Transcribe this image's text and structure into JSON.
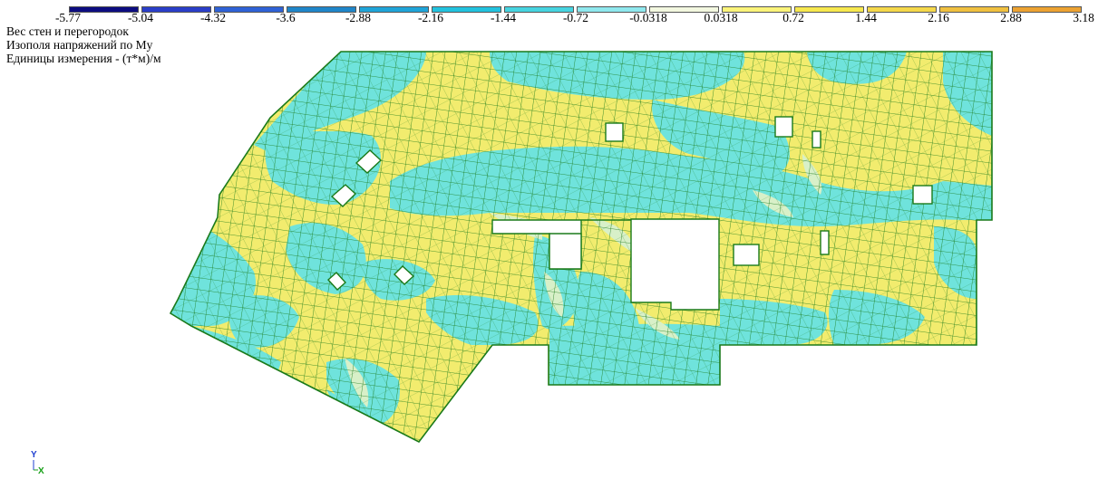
{
  "legend": {
    "colors": [
      "#0c0c80",
      "#2a3ec8",
      "#2f62d6",
      "#1f86c9",
      "#1fa4d8",
      "#22c2de",
      "#46d4e0",
      "#8fe8ee",
      "#f3f8e0",
      "#fbf47a",
      "#f7e84e",
      "#f5d84a",
      "#f0c040",
      "#eca232"
    ],
    "ticks": [
      "-5.77",
      "-5.04",
      "-4.32",
      "-3.6",
      "-2.88",
      "-2.16",
      "-1.44",
      "-0.72",
      "-0.0318",
      "0.0318",
      "0.72",
      "1.44",
      "2.16",
      "2.88",
      "3.18"
    ]
  },
  "info": {
    "line1": "Вес стен и перегородок",
    "line2": "Изополя напряжений по My",
    "line3": "Единицы измерения - (т*м)/м"
  },
  "plate": {
    "fill_positive": "#f2ec6e",
    "fill_negative": "#6fe3dc",
    "fill_near_zero": "#d8f0c8",
    "mesh_color": "#1a7a1a"
  },
  "axes": {
    "y_label": "Y",
    "x_label": "X",
    "y_color": "#2040d0",
    "x_color": "#18a018"
  }
}
